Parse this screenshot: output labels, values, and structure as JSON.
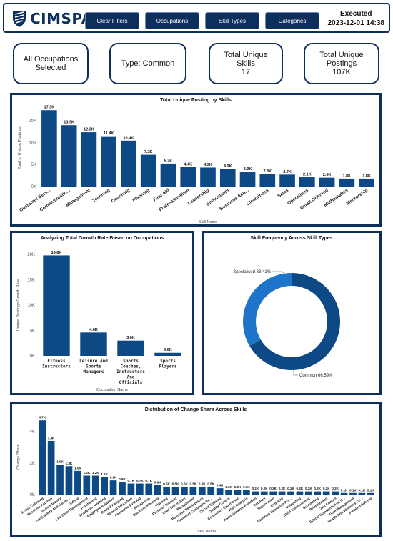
{
  "header": {
    "logo_text": "CIMSPA",
    "buttons": [
      "Clear Filters",
      "Occupations",
      "Skill Types",
      "Categories"
    ],
    "executed_label": "Executed",
    "executed_time": "2023-12-01 14:38"
  },
  "cards": {
    "occupations": "All Occupations Selected",
    "type": "Type: Common",
    "skills_label": "Total Unique Skills",
    "skills_value": "17",
    "postings_label": "Total Unique Postings",
    "postings_value": "107K"
  },
  "colors": {
    "primary": "#0d4a85",
    "dark": "#0d2f5c",
    "light": "#1e74c8"
  },
  "chart_data": [
    {
      "type": "bar",
      "title": "Total Unique Posting by Skills",
      "xlabel": "Skill Name",
      "ylabel": "Total of Unique Postings",
      "ylim": [
        0,
        17500
      ],
      "yticks": [
        "0K",
        "5K",
        "10K",
        "15K"
      ],
      "categories": [
        "Customer Serv...",
        "Communicatio...",
        "Management",
        "Teaching",
        "Coaching",
        "Planning",
        "First Aid",
        "Professionalism",
        "Leadership",
        "Enthusiasm",
        "Business Acu...",
        "Cleanliness",
        "Sales",
        "Operations",
        "Detail Oriented",
        "Mathematics",
        "Mentorship"
      ],
      "values": [
        17300,
        13900,
        12300,
        11400,
        10400,
        7200,
        5200,
        4400,
        4300,
        4000,
        3300,
        2800,
        2700,
        2100,
        2000,
        1800,
        1800
      ],
      "labels": [
        "17.3K",
        "13.9K",
        "12.3K",
        "11.4K",
        "10.4K",
        "7.2K",
        "5.2K",
        "4.4K",
        "4.3K",
        "4.0K",
        "3.3K",
        "2.8K",
        "2.7K",
        "2.1K",
        "2.0K",
        "1.8K",
        "1.8K"
      ]
    },
    {
      "type": "bar",
      "title": "Analyzing Total Growth Rate Based on Occupations",
      "xlabel": "Occupation Name",
      "ylabel": "Unique Postings Growth Rate",
      "ylim": [
        0,
        20000
      ],
      "yticks": [
        "0K",
        "5K",
        "10K",
        "15K",
        "20K"
      ],
      "categories": [
        [
          "Fitness",
          "Instructors"
        ],
        [
          "Leisure And",
          "Sports",
          "Managers"
        ],
        [
          "Sports",
          "Coaches,",
          "Instructors",
          "And",
          "Officials"
        ],
        [
          "Sports",
          "Players"
        ]
      ],
      "values": [
        19800,
        4600,
        3000,
        600
      ],
      "labels": [
        "19.8K",
        "4.6K",
        "3.0K",
        "0.6K"
      ]
    },
    {
      "type": "pie",
      "title": "Skill Frequency Across Skill Types",
      "slices": [
        {
          "name": "Common",
          "value": 66.59,
          "label": "Common 66.59%"
        },
        {
          "name": "Specialised",
          "value": 33.41,
          "label": "Specialised 33.41%"
        }
      ]
    },
    {
      "type": "bar",
      "title": "Distribution of Change Share Across Skills",
      "xlabel": "Skill Name",
      "ylabel": "Change Share",
      "ylim": [
        0,
        4800
      ],
      "yticks": [
        "0K",
        "2K",
        "4K"
      ],
      "categories": [
        "Active Listening",
        "Business Acumen",
        "Accountability",
        "Food Safety And Sanita...",
        "Lifting",
        "Life Skills Development",
        "Purchasing",
        "Academic Advising",
        "Employee Relations",
        "Record Keeping",
        "Special Education",
        "Paediatric First Aid",
        "Mentorship",
        "Business Planning",
        "Planning",
        "Personal Training",
        "Lead Generation",
        "Receptionist",
        "Business Development",
        "Customer Complaint Re...",
        "Circuit Training",
        "Quality Control",
        "Consultant Experience",
        "Risk Analysis",
        "Administrative Function",
        "Rotation",
        "Supervision",
        "Empathy",
        "Standard Operating Pro...",
        "Instructing",
        "Child Safeguarding",
        "Scheduling",
        "Prioritization",
        "Cost Control",
        "Ethical Standards And C...",
        "Time Management",
        "Health And Wellness Co...",
        "Problem Solving"
      ],
      "values": [
        4700,
        3400,
        1900,
        1800,
        1500,
        1200,
        1200,
        1100,
        900,
        800,
        700,
        700,
        700,
        600,
        500,
        500,
        500,
        500,
        500,
        500,
        400,
        300,
        300,
        300,
        200,
        200,
        200,
        200,
        200,
        200,
        200,
        200,
        200,
        200,
        100,
        100,
        100,
        100
      ],
      "labels": [
        "4.7K",
        "3.4K",
        "1.9K",
        "1.8K",
        "1.5K",
        "1.2K",
        "1.2K",
        "1.1K",
        "0.9K",
        "0.8K",
        "0.7K",
        "0.7K",
        "0.7K",
        "0.6K",
        "0.5K",
        "0.5K",
        "0.5K",
        "0.5K",
        "0.5K",
        "0.5K",
        "0.4K",
        "0.3K",
        "0.3K",
        "0.3K",
        "0.2K",
        "0.2K",
        "0.2K",
        "0.2K",
        "0.2K",
        "0.2K",
        "0.2K",
        "0.2K",
        "0.2K",
        "0.2K",
        "0.1K",
        "0.1K",
        "0.1K",
        "0.1K"
      ]
    }
  ]
}
